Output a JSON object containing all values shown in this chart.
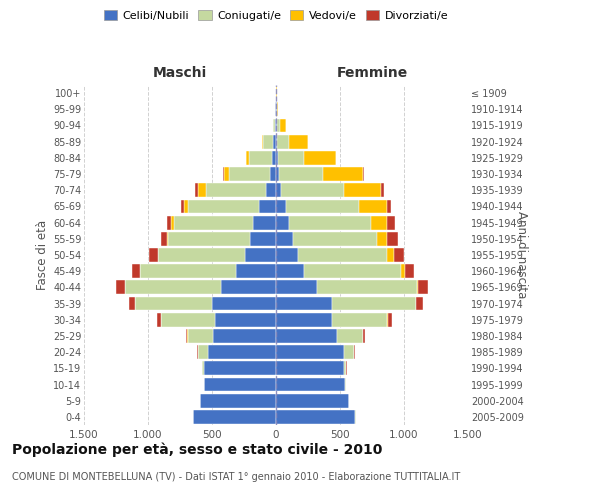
{
  "age_groups": [
    "0-4",
    "5-9",
    "10-14",
    "15-19",
    "20-24",
    "25-29",
    "30-34",
    "35-39",
    "40-44",
    "45-49",
    "50-54",
    "55-59",
    "60-64",
    "65-69",
    "70-74",
    "75-79",
    "80-84",
    "85-89",
    "90-94",
    "95-99",
    "100+"
  ],
  "birth_years": [
    "2005-2009",
    "2000-2004",
    "1995-1999",
    "1990-1994",
    "1985-1989",
    "1980-1984",
    "1975-1979",
    "1970-1974",
    "1965-1969",
    "1960-1964",
    "1955-1959",
    "1950-1954",
    "1945-1949",
    "1940-1944",
    "1935-1939",
    "1930-1934",
    "1925-1929",
    "1920-1924",
    "1915-1919",
    "1910-1914",
    "≤ 1909"
  ],
  "male": {
    "celibi": [
      650,
      590,
      560,
      560,
      530,
      490,
      480,
      500,
      430,
      310,
      240,
      200,
      180,
      130,
      80,
      50,
      30,
      20,
      10,
      4,
      2
    ],
    "coniugati": [
      2,
      2,
      5,
      20,
      80,
      200,
      420,
      600,
      750,
      750,
      680,
      640,
      620,
      560,
      470,
      320,
      180,
      80,
      15,
      3,
      1
    ],
    "vedovi": [
      0,
      0,
      0,
      0,
      2,
      2,
      2,
      2,
      2,
      3,
      5,
      10,
      20,
      30,
      60,
      40,
      25,
      10,
      2,
      0,
      0
    ],
    "divorziati": [
      0,
      0,
      0,
      2,
      5,
      10,
      25,
      45,
      65,
      60,
      70,
      50,
      35,
      25,
      20,
      5,
      2,
      2,
      0,
      0,
      0
    ]
  },
  "female": {
    "nubili": [
      620,
      570,
      540,
      530,
      530,
      480,
      440,
      440,
      320,
      220,
      170,
      130,
      100,
      80,
      40,
      20,
      15,
      10,
      8,
      4,
      2
    ],
    "coniugate": [
      2,
      2,
      5,
      20,
      80,
      200,
      430,
      650,
      780,
      760,
      700,
      660,
      640,
      570,
      490,
      350,
      200,
      90,
      20,
      5,
      1
    ],
    "vedove": [
      0,
      0,
      0,
      0,
      2,
      2,
      3,
      5,
      10,
      25,
      50,
      80,
      130,
      220,
      290,
      310,
      250,
      150,
      50,
      10,
      2
    ],
    "divorziate": [
      0,
      0,
      0,
      2,
      5,
      10,
      30,
      50,
      75,
      75,
      80,
      80,
      60,
      30,
      20,
      10,
      5,
      3,
      2,
      0,
      0
    ]
  },
  "colors": {
    "celibi": "#4472c4",
    "coniugati": "#c5d9a0",
    "vedovi": "#ffc000",
    "divorziati": "#c0392b"
  },
  "xlim": 1500,
  "title": "Popolazione per età, sesso e stato civile - 2010",
  "subtitle": "COMUNE DI MONTEBELLUNA (TV) - Dati ISTAT 1° gennaio 2010 - Elaborazione TUTTITALIA.IT",
  "ylabel_left": "Fasce di età",
  "ylabel_right": "Anni di nascita",
  "xlabel_maschi": "Maschi",
  "xlabel_femmine": "Femmine",
  "legend_labels": [
    "Celibi/Nubili",
    "Coniugati/e",
    "Vedovi/e",
    "Divorziati/e"
  ],
  "background_color": "#ffffff",
  "grid_color": "#cccccc"
}
